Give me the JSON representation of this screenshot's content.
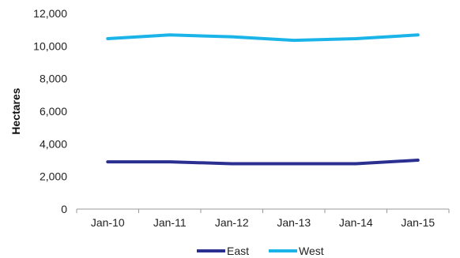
{
  "chart_data": {
    "type": "line",
    "title": "",
    "xlabel": "",
    "ylabel": "Hectares",
    "categories": [
      "Jan-10",
      "Jan-11",
      "Jan-12",
      "Jan-13",
      "Jan-14",
      "Jan-15"
    ],
    "ylim": [
      0,
      12000
    ],
    "yticks": [
      0,
      2000,
      4000,
      6000,
      8000,
      10000,
      12000
    ],
    "ytick_labels": [
      "0",
      "2,000",
      "4,000",
      "6,000",
      "8,000",
      "10,000",
      "12,000"
    ],
    "grid": false,
    "legend_position": "bottom",
    "series": [
      {
        "name": "East",
        "color": "#2b2f8f",
        "values": [
          2900,
          2900,
          2780,
          2780,
          2780,
          3000
        ]
      },
      {
        "name": "West",
        "color": "#1ab4e8",
        "values": [
          10450,
          10680,
          10570,
          10350,
          10450,
          10680
        ]
      }
    ]
  }
}
